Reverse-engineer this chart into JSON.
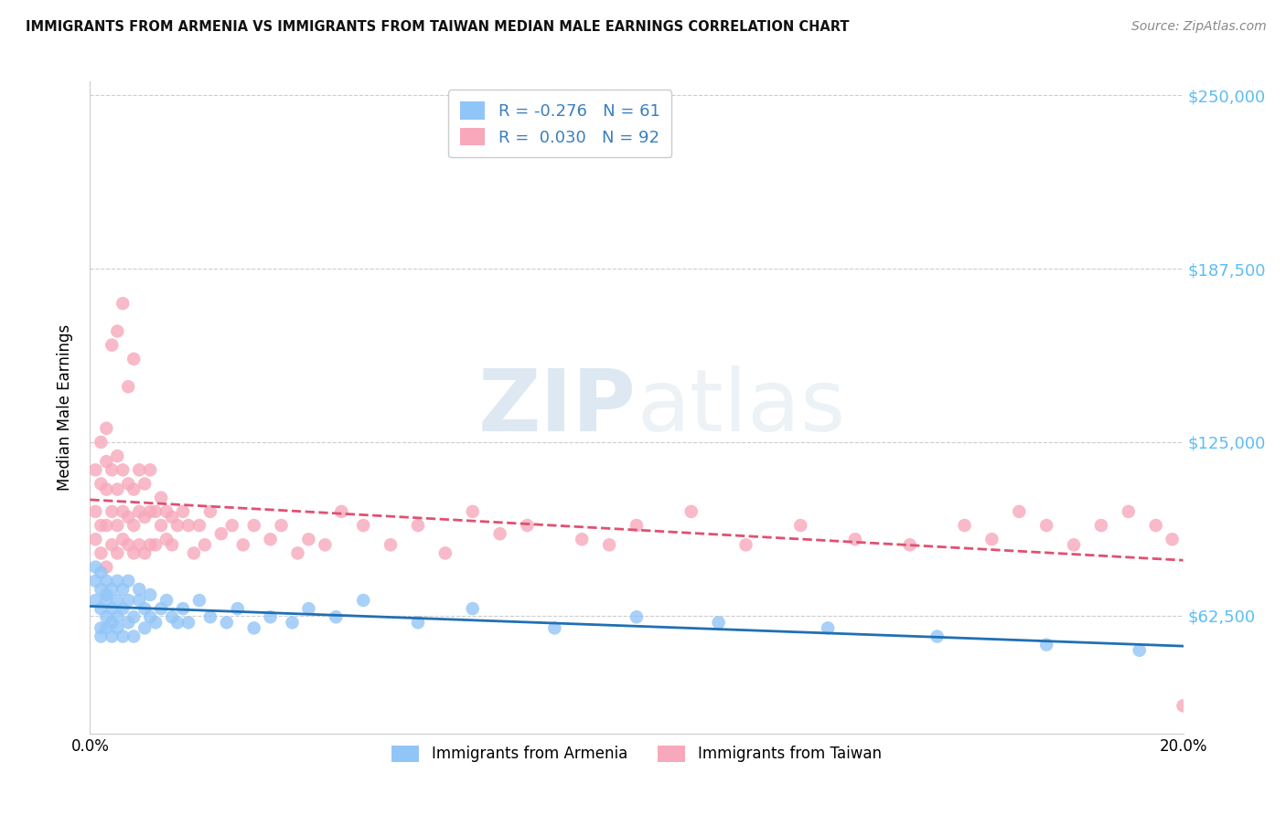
{
  "title": "IMMIGRANTS FROM ARMENIA VS IMMIGRANTS FROM TAIWAN MEDIAN MALE EARNINGS CORRELATION CHART",
  "source": "Source: ZipAtlas.com",
  "ylabel": "Median Male Earnings",
  "xlim": [
    0.0,
    0.2
  ],
  "ylim": [
    20000,
    255000
  ],
  "yticks": [
    62500,
    125000,
    187500,
    250000
  ],
  "ytick_labels": [
    "$62,500",
    "$125,000",
    "$187,500",
    "$250,000"
  ],
  "xticks": [
    0.0,
    0.05,
    0.1,
    0.15,
    0.2
  ],
  "xtick_labels": [
    "0.0%",
    "",
    "",
    "",
    "20.0%"
  ],
  "color_armenia": "#92c5f7",
  "color_taiwan": "#f7a8bb",
  "color_armenia_line": "#2070b4",
  "color_taiwan_line": "#e05070",
  "armenia_R": -0.276,
  "armenia_N": 61,
  "taiwan_R": 0.03,
  "taiwan_N": 92,
  "watermark_zip": "ZIP",
  "watermark_atlas": "atlas",
  "armenia_x": [
    0.001,
    0.001,
    0.001,
    0.002,
    0.002,
    0.002,
    0.002,
    0.002,
    0.003,
    0.003,
    0.003,
    0.003,
    0.003,
    0.004,
    0.004,
    0.004,
    0.004,
    0.005,
    0.005,
    0.005,
    0.005,
    0.006,
    0.006,
    0.006,
    0.007,
    0.007,
    0.007,
    0.008,
    0.008,
    0.009,
    0.009,
    0.01,
    0.01,
    0.011,
    0.011,
    0.012,
    0.013,
    0.014,
    0.015,
    0.016,
    0.017,
    0.018,
    0.02,
    0.022,
    0.025,
    0.027,
    0.03,
    0.033,
    0.037,
    0.04,
    0.045,
    0.05,
    0.06,
    0.07,
    0.085,
    0.1,
    0.115,
    0.135,
    0.155,
    0.175,
    0.192
  ],
  "armenia_y": [
    68000,
    75000,
    80000,
    58000,
    72000,
    65000,
    78000,
    55000,
    70000,
    62000,
    75000,
    58000,
    68000,
    65000,
    72000,
    60000,
    55000,
    68000,
    75000,
    62000,
    58000,
    65000,
    72000,
    55000,
    68000,
    60000,
    75000,
    62000,
    55000,
    68000,
    72000,
    58000,
    65000,
    62000,
    70000,
    60000,
    65000,
    68000,
    62000,
    60000,
    65000,
    60000,
    68000,
    62000,
    60000,
    65000,
    58000,
    62000,
    60000,
    65000,
    62000,
    68000,
    60000,
    65000,
    58000,
    62000,
    60000,
    58000,
    55000,
    52000,
    50000
  ],
  "taiwan_x": [
    0.001,
    0.001,
    0.001,
    0.002,
    0.002,
    0.002,
    0.002,
    0.003,
    0.003,
    0.003,
    0.003,
    0.003,
    0.004,
    0.004,
    0.004,
    0.004,
    0.005,
    0.005,
    0.005,
    0.005,
    0.005,
    0.006,
    0.006,
    0.006,
    0.006,
    0.007,
    0.007,
    0.007,
    0.007,
    0.008,
    0.008,
    0.008,
    0.008,
    0.009,
    0.009,
    0.009,
    0.01,
    0.01,
    0.01,
    0.011,
    0.011,
    0.011,
    0.012,
    0.012,
    0.013,
    0.013,
    0.014,
    0.014,
    0.015,
    0.015,
    0.016,
    0.017,
    0.018,
    0.019,
    0.02,
    0.021,
    0.022,
    0.024,
    0.026,
    0.028,
    0.03,
    0.033,
    0.035,
    0.038,
    0.04,
    0.043,
    0.046,
    0.05,
    0.055,
    0.06,
    0.065,
    0.07,
    0.075,
    0.08,
    0.09,
    0.095,
    0.1,
    0.11,
    0.12,
    0.13,
    0.14,
    0.15,
    0.16,
    0.165,
    0.17,
    0.175,
    0.18,
    0.185,
    0.19,
    0.195,
    0.198,
    0.2
  ],
  "taiwan_y": [
    90000,
    100000,
    115000,
    85000,
    95000,
    110000,
    125000,
    80000,
    95000,
    108000,
    118000,
    130000,
    88000,
    100000,
    115000,
    160000,
    85000,
    95000,
    108000,
    120000,
    165000,
    90000,
    100000,
    115000,
    175000,
    88000,
    98000,
    110000,
    145000,
    85000,
    95000,
    108000,
    155000,
    88000,
    100000,
    115000,
    85000,
    98000,
    110000,
    88000,
    100000,
    115000,
    88000,
    100000,
    95000,
    105000,
    90000,
    100000,
    88000,
    98000,
    95000,
    100000,
    95000,
    85000,
    95000,
    88000,
    100000,
    92000,
    95000,
    88000,
    95000,
    90000,
    95000,
    85000,
    90000,
    88000,
    100000,
    95000,
    88000,
    95000,
    85000,
    100000,
    92000,
    95000,
    90000,
    88000,
    95000,
    100000,
    88000,
    95000,
    90000,
    88000,
    95000,
    90000,
    100000,
    95000,
    88000,
    95000,
    100000,
    95000,
    90000,
    30000
  ]
}
